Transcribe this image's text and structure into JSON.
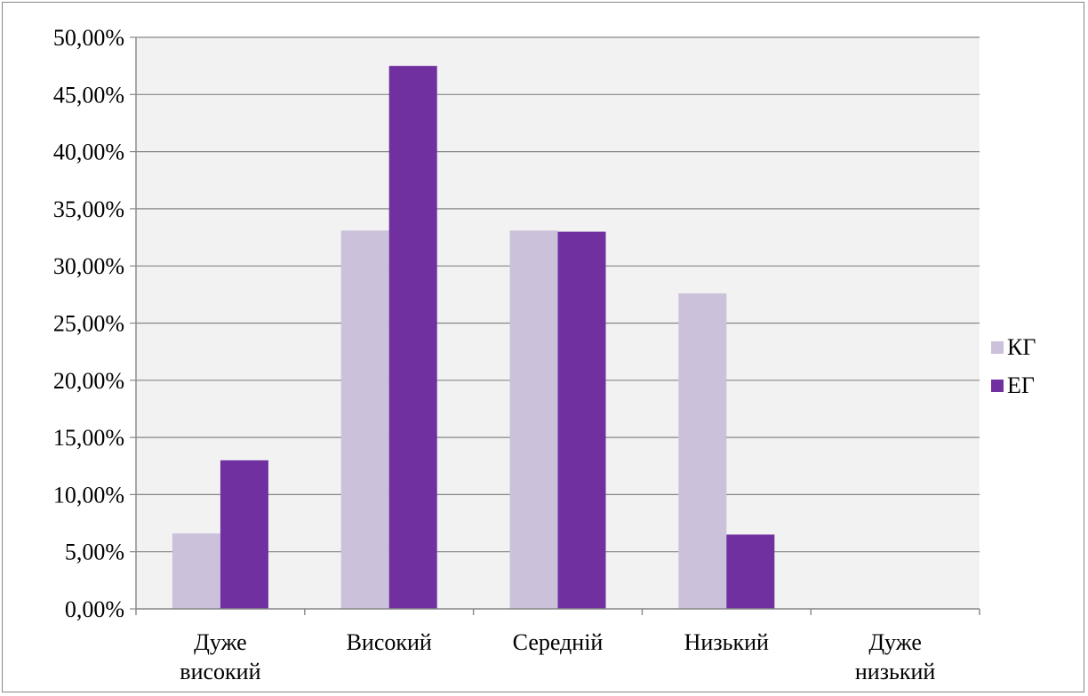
{
  "chart_data": {
    "type": "bar",
    "categories": [
      [
        "Дуже",
        "високий"
      ],
      [
        "Високий"
      ],
      [
        "Середній"
      ],
      [
        "Низький"
      ],
      [
        "Дуже",
        "низький"
      ]
    ],
    "series": [
      {
        "name": "КГ",
        "color": "#ccc1da",
        "values": [
          6.6,
          33.1,
          33.1,
          27.6,
          0
        ]
      },
      {
        "name": "ЕГ",
        "color": "#7030a0",
        "values": [
          13.0,
          47.5,
          33.0,
          6.5,
          0
        ]
      }
    ],
    "ylim": [
      0,
      50
    ],
    "ytick_labels": [
      "0,00%",
      "5,00%",
      "10,00%",
      "15,00%",
      "20,00%",
      "25,00%",
      "30,00%",
      "35,00%",
      "40,00%",
      "45,00%",
      "50,00%"
    ],
    "grid": true,
    "plot_background": "#f2f2f2",
    "legend_position": "right"
  }
}
